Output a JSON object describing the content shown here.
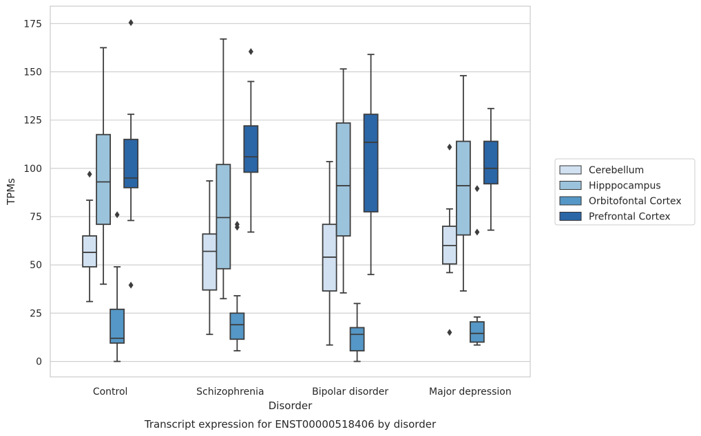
{
  "chart_data": {
    "type": "box",
    "caption": "Transcript expression for ENST00000518406 by disorder",
    "xlabel": "Disorder",
    "ylabel": "TPMs",
    "ylim": [
      -8,
      184
    ],
    "yticks": [
      0,
      25,
      50,
      75,
      100,
      125,
      150,
      175
    ],
    "grid": "horizontal",
    "legend_position": "right",
    "categories": [
      "Control",
      "Schizophrenia",
      "Bipolar disorder",
      "Major depression"
    ],
    "series": [
      {
        "name": "Cerebellum",
        "color": "#d1e1f1",
        "boxes": [
          {
            "whisker_low": 31,
            "q1": 49,
            "median": 56.5,
            "q3": 65,
            "whisker_high": 83.5,
            "outliers": [
              97
            ]
          },
          {
            "whisker_low": 14,
            "q1": 37,
            "median": 57,
            "q3": 66,
            "whisker_high": 93.5,
            "outliers": []
          },
          {
            "whisker_low": 8.5,
            "q1": 36.5,
            "median": 54,
            "q3": 71,
            "whisker_high": 103.5,
            "outliers": []
          },
          {
            "whisker_low": 46,
            "q1": 50.5,
            "median": 60,
            "q3": 70,
            "whisker_high": 79,
            "outliers": [
              15,
              111
            ]
          }
        ]
      },
      {
        "name": "Hipppocampus",
        "color": "#9cc3dc",
        "boxes": [
          {
            "whisker_low": 40,
            "q1": 71,
            "median": 93,
            "q3": 117.5,
            "whisker_high": 162.5,
            "outliers": []
          },
          {
            "whisker_low": 32.5,
            "q1": 48,
            "median": 74.5,
            "q3": 102,
            "whisker_high": 167,
            "outliers": []
          },
          {
            "whisker_low": 35.5,
            "q1": 65,
            "median": 91,
            "q3": 123.5,
            "whisker_high": 151.5,
            "outliers": []
          },
          {
            "whisker_low": 36.5,
            "q1": 65.5,
            "median": 91,
            "q3": 114,
            "whisker_high": 148,
            "outliers": []
          }
        ]
      },
      {
        "name": "Orbitofontal Cortex",
        "color": "#5597c6",
        "boxes": [
          {
            "whisker_low": 0,
            "q1": 9.5,
            "median": 12,
            "q3": 27,
            "whisker_high": 49,
            "outliers": [
              76
            ]
          },
          {
            "whisker_low": 5.5,
            "q1": 11.5,
            "median": 19,
            "q3": 25,
            "whisker_high": 34,
            "outliers": [
              69.5,
              71
            ]
          },
          {
            "whisker_low": 0,
            "q1": 5.5,
            "median": 14,
            "q3": 17.5,
            "whisker_high": 30,
            "outliers": []
          },
          {
            "whisker_low": 8.5,
            "q1": 10,
            "median": 14.5,
            "q3": 20.5,
            "whisker_high": 23,
            "outliers": [
              67,
              89.5
            ]
          }
        ]
      },
      {
        "name": "Prefrontal Cortex",
        "color": "#2b66a7",
        "boxes": [
          {
            "whisker_low": 73,
            "q1": 90,
            "median": 95,
            "q3": 115,
            "whisker_high": 128,
            "outliers": [
              39.5,
              175.5
            ]
          },
          {
            "whisker_low": 67,
            "q1": 98,
            "median": 106,
            "q3": 122,
            "whisker_high": 145,
            "outliers": [
              160.5
            ]
          },
          {
            "whisker_low": 45,
            "q1": 77.5,
            "median": 113.5,
            "q3": 128,
            "whisker_high": 159,
            "outliers": []
          },
          {
            "whisker_low": 68,
            "q1": 92,
            "median": 100,
            "q3": 114,
            "whisker_high": 131,
            "outliers": []
          }
        ]
      }
    ]
  }
}
